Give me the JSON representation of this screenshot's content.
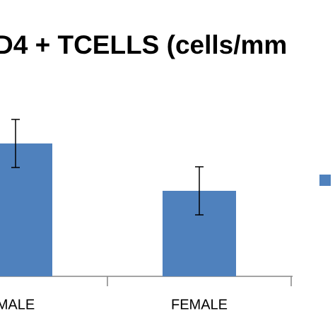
{
  "chart_data": {
    "type": "bar",
    "title": "D4 + TCELLS (cells/mm",
    "categories": [
      "MALE",
      "FEMALE"
    ],
    "series": [
      {
        "color": "#4f81bd",
        "values": [
          188,
          121
        ],
        "errors": [
          34,
          34
        ]
      }
    ],
    "ylim": [
      0,
      391
    ],
    "legend": "right"
  }
}
